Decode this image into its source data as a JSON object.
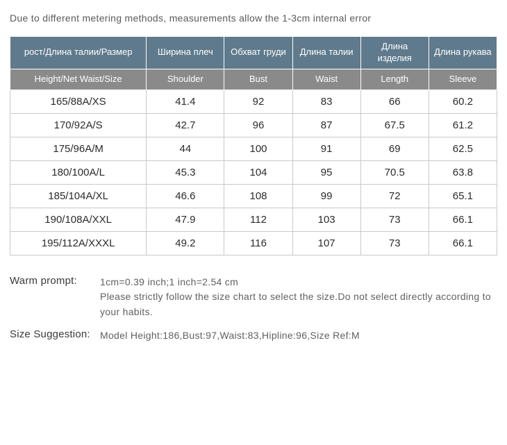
{
  "top_note": "Due to different metering methods, measurements allow the 1-3cm internal error",
  "table": {
    "headers_ru": [
      "рост/Длина талии/Размер",
      "Ширина плеч",
      "Обхват груди",
      "Длина талии",
      "Длина изделия",
      "Длина рукава"
    ],
    "headers_en": [
      "Height/Net Waist/Size",
      "Shoulder",
      "Bust",
      "Waist",
      "Length",
      "Sleeve"
    ],
    "rows": [
      [
        "165/88A/XS",
        "41.4",
        "92",
        "83",
        "66",
        "60.2"
      ],
      [
        "170/92A/S",
        "42.7",
        "96",
        "87",
        "67.5",
        "61.2"
      ],
      [
        "175/96A/M",
        "44",
        "100",
        "91",
        "69",
        "62.5"
      ],
      [
        "180/100A/L",
        "45.3",
        "104",
        "95",
        "70.5",
        "63.8"
      ],
      [
        "185/104A/XL",
        "46.6",
        "108",
        "99",
        "72",
        "65.1"
      ],
      [
        "190/108A/XXL",
        "47.9",
        "112",
        "103",
        "73",
        "66.1"
      ],
      [
        "195/112A/XXXL",
        "49.2",
        "116",
        "107",
        "73",
        "66.1"
      ]
    ],
    "header_ru_bg": "#5f7a8c",
    "header_en_bg": "#8a8a8a",
    "header_fg": "#ffffff",
    "cell_fg": "#2b2b2b",
    "cell_border": "#c9c9c9"
  },
  "warm_prompt": {
    "label": "Warm prompt:",
    "line1": "1cm=0.39 inch;1 inch=2.54 cm",
    "line2": "Please strictly follow the size chart  to select the size.Do not select directly according to your habits."
  },
  "size_suggestion": {
    "label": "Size Suggestion:",
    "text": "Model Height:186,Bust:97,Waist:83,Hipline:96,Size Ref:M"
  }
}
